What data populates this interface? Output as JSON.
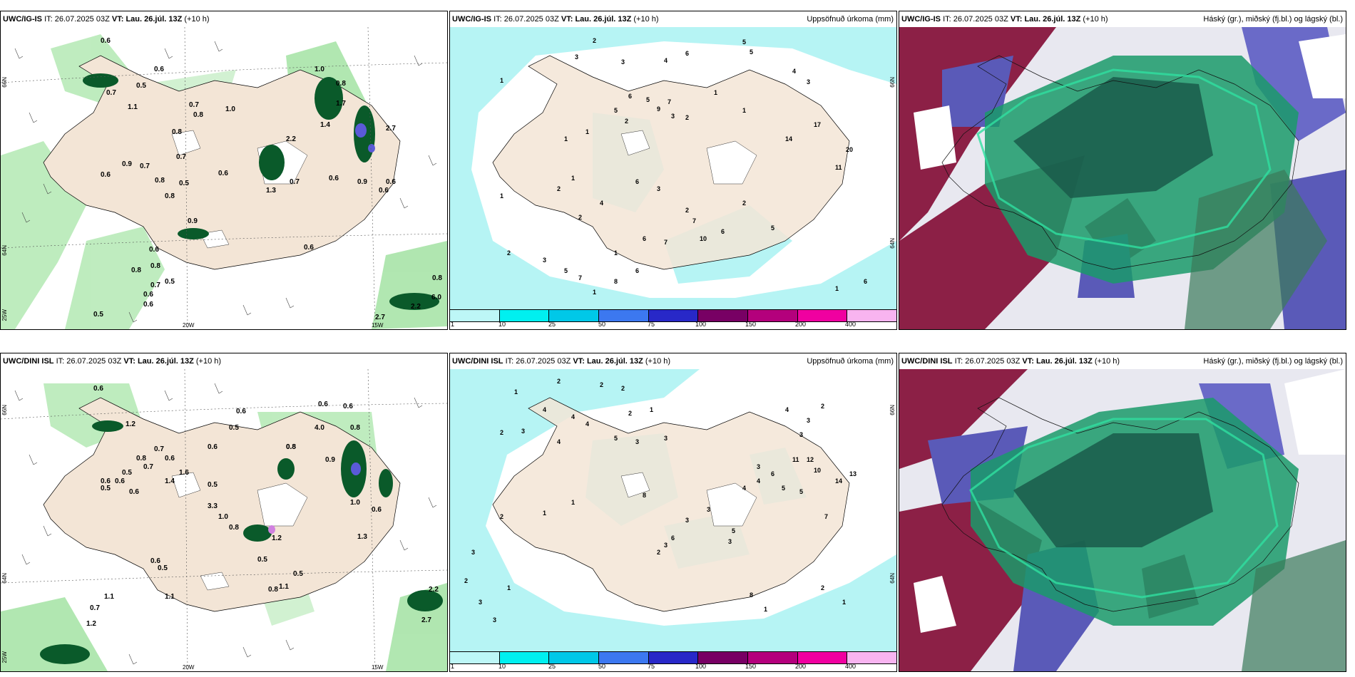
{
  "panels": [
    {
      "id": "top-left",
      "model": "UWC/IG-IS",
      "it_label": "IT:",
      "it_value": "26.07.2025 03Z",
      "vt_label": "VT:",
      "vt_value": "Lau. 26.júl. 13Z",
      "lead": "(+10 h)",
      "right_title": "",
      "lat_labels": [
        "66N",
        "64N",
        "25W"
      ],
      "lon_labels": [
        "20W",
        "15W"
      ]
    },
    {
      "id": "top-middle",
      "model": "UWC/IG-IS",
      "it_label": "IT:",
      "it_value": "26.07.2025 03Z",
      "vt_label": "VT:",
      "vt_value": "Lau. 26.júl. 13Z",
      "lead": "(+10 h)",
      "right_title": "Uppsöfnuð úrkoma (mm)",
      "lat_labels": [
        "66N",
        "64N"
      ],
      "lon_labels": []
    },
    {
      "id": "top-right",
      "model": "UWC/IG-IS",
      "it_label": "IT:",
      "it_value": "26.07.2025 03Z",
      "vt_label": "VT:",
      "vt_value": "Lau. 26.júl. 13Z",
      "lead": "(+10 h)",
      "right_title": "Háský (gr.), miðský (fj.bl.) og lágský (bl.)",
      "lat_labels": [],
      "lon_labels": []
    },
    {
      "id": "bottom-left",
      "model": "UWC/DINI ISL",
      "it_label": "IT:",
      "it_value": "26.07.2025 03Z",
      "vt_label": "VT:",
      "vt_value": "Lau. 26.júl. 13Z",
      "lead": "(+10 h)",
      "right_title": "",
      "lat_labels": [
        "66N",
        "64N",
        "25W"
      ],
      "lon_labels": [
        "20W",
        "15W"
      ]
    },
    {
      "id": "bottom-middle",
      "model": "UWC/DINI ISL",
      "it_label": "IT:",
      "it_value": "26.07.2025 03Z",
      "vt_label": "VT:",
      "vt_value": "Lau. 26.júl. 13Z",
      "lead": "(+10 h)",
      "right_title": "Uppsöfnuð úrkoma (mm)",
      "lat_labels": [
        "66N",
        "64N"
      ],
      "lon_labels": []
    },
    {
      "id": "bottom-right",
      "model": "UWC/DINI ISL",
      "it_label": "IT:",
      "it_value": "26.07.2025 03Z",
      "vt_label": "VT:",
      "vt_value": "Lau. 26.júl. 13Z",
      "lead": "(+10 h)",
      "right_title": "Háský (gr.), miðský (fj.bl.) og lágský (bl.)",
      "lat_labels": [],
      "lon_labels": []
    }
  ],
  "colorbar": {
    "ticks": [
      "1",
      "10",
      "25",
      "50",
      "75",
      "100",
      "150",
      "200",
      "400"
    ],
    "colors": [
      "#bdf7f7",
      "#00f0f0",
      "#00c8e8",
      "#3c78f0",
      "#2828c8",
      "#780064",
      "#b4007c",
      "#f000a0",
      "#f8b4f0"
    ]
  },
  "colors": {
    "land": "#f3e5d6",
    "sea_rain": "#b6f4f4",
    "green_light": "#b8eab8",
    "green_dark": "#0a5a2a",
    "cloud_high": "#8c2046",
    "cloud_mid": "#5a5ab8",
    "cloud_low": "#1a9a6a"
  },
  "precip_labels": {
    "top_left": [
      "0.6",
      "0.6",
      "0.5",
      "0.7",
      "0.8",
      "0.8",
      "1.0",
      "0.7",
      "0.8",
      "0.6",
      "0.9",
      "0.7",
      "0.6",
      "0.8",
      "0.5",
      "1.0",
      "0.9",
      "0.6",
      "0.8",
      "0.7",
      "0.6",
      "0.5",
      "0.8",
      "0.6",
      "0.6",
      "0.5",
      "0.6",
      "0.8",
      "0.9",
      "0.6",
      "2.2",
      "1.3",
      "0.7",
      "1.7",
      "2.7",
      "1.4",
      "0.6",
      "6.0",
      "0.8",
      "2.7",
      "2.2",
      "1.1",
      "0.7"
    ],
    "top_middle": [
      "2",
      "3",
      "3",
      "4",
      "6",
      "5",
      "5",
      "1",
      "1",
      "1",
      "5",
      "6",
      "2",
      "5",
      "9",
      "7",
      "3",
      "2",
      "1",
      "1",
      "4",
      "3",
      "14",
      "17",
      "20",
      "11",
      "1",
      "2",
      "1",
      "4",
      "2",
      "6",
      "3",
      "2",
      "7",
      "10",
      "6",
      "7",
      "6",
      "2",
      "5",
      "2",
      "3",
      "5",
      "7",
      "6",
      "8",
      "1",
      "1",
      "6",
      "1"
    ],
    "bottom_left": [
      "0.6",
      "0.6",
      "1.2",
      "0.6",
      "0.5",
      "0.6",
      "0.8",
      "0.7",
      "0.8",
      "0.6",
      "0.5",
      "1.6",
      "1.4",
      "0.6",
      "0.6",
      "0.5",
      "0.7",
      "0.6",
      "0.8",
      "4.0",
      "0.6",
      "0.8",
      "0.5",
      "0.9",
      "0.6",
      "1.0",
      "3.3",
      "1.0",
      "0.8",
      "1.2",
      "0.5",
      "0.5",
      "0.8",
      "1.1",
      "0.6",
      "0.5",
      "1.1",
      "0.7",
      "1.1",
      "1.2",
      "2.2",
      "2.7",
      "1.3"
    ],
    "bottom_middle": [
      "2",
      "2",
      "2",
      "1",
      "2",
      "3",
      "4",
      "4",
      "4",
      "2",
      "1",
      "4",
      "5",
      "3",
      "3",
      "4",
      "3",
      "2",
      "3",
      "11",
      "12",
      "10",
      "14",
      "13",
      "5",
      "4",
      "6",
      "3",
      "4",
      "5",
      "7",
      "5",
      "3",
      "3",
      "8",
      "3",
      "6",
      "3",
      "2",
      "1",
      "1",
      "2",
      "3",
      "2",
      "1",
      "8",
      "1",
      "2",
      "1",
      "3",
      "3"
    ]
  }
}
